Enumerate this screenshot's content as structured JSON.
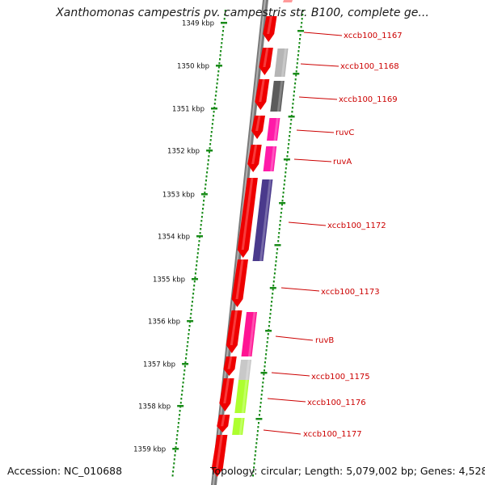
{
  "title": "Xanthomonas campestris pv. campestris str. B100, complete ge...",
  "footer": {
    "accession": "Accession: NC_010688",
    "topology": "Topology: circular; Length: 5,079,002 bp; Genes: 4,528"
  },
  "axis": {
    "unit": "kbp",
    "ticks": [
      "1349 kbp",
      "1350 kbp",
      "1351 kbp",
      "1352 kbp",
      "1353 kbp",
      "1354 kbp",
      "1355 kbp",
      "1356 kbp",
      "1357 kbp",
      "1358 kbp",
      "1359 kbp"
    ]
  },
  "colors": {
    "backbone": "#7a7a7a",
    "axis_dots": "#1a8c1a",
    "cds": "#ee0000",
    "label": "#cc0000"
  },
  "genes": [
    {
      "name": "xccb100_1167",
      "color": "#ff1493"
    },
    {
      "name": "xccb100_1168",
      "color": "#b5b5b5"
    },
    {
      "name": "xccb100_1169",
      "color": "#5c5c5c"
    },
    {
      "name": "ruvC",
      "color": "#ff1aa8"
    },
    {
      "name": "ruvA",
      "color": "#ff1aa8"
    },
    {
      "name": "xccb100_1172",
      "color": "#4a3a8c"
    },
    {
      "name": "xccb100_1173",
      "color": ""
    },
    {
      "name": "ruvB",
      "color": "#ff1493"
    },
    {
      "name": "xccb100_1175",
      "color": "#c8c8c8"
    },
    {
      "name": "xccb100_1176",
      "color": "#adff2f"
    },
    {
      "name": "xccb100_1177",
      "color": "#adff2f"
    }
  ]
}
